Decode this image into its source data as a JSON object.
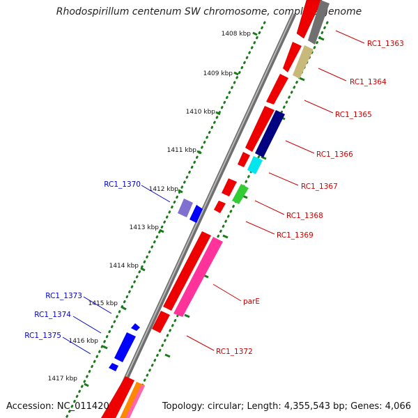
{
  "title": "Rhodospirillum centenum SW chromosome, complete genome",
  "footer": {
    "accession": "Accession: NC_011420",
    "topology": "Topology: circular; Length: 4,355,543 bp; Genes: 4,066"
  },
  "colors": {
    "backbone": "#8a8a8a",
    "ticks": "#1a7a1a",
    "forward_label": "#cc0000",
    "reverse_label": "#0000cc"
  },
  "kbp_labels": [
    "1408 kbp",
    "1409 kbp",
    "1410 kbp",
    "1411 kbp",
    "1412 kbp",
    "1413 kbp",
    "1414 kbp",
    "1415 kbp",
    "1416 kbp",
    "1417 kbp"
  ],
  "features": [
    {
      "label": "",
      "strand": "outer",
      "color": "#ee0000"
    },
    {
      "label": "RC1_1363",
      "strand": "outer",
      "color": "#707070"
    },
    {
      "label": "RC1_1364",
      "strand": "outer",
      "color": "#c8b87a"
    },
    {
      "label": "RC1_1365",
      "strand": "outer",
      "color": "#ee0000"
    },
    {
      "label": "RC1_1366",
      "strand": "outer",
      "color": "#000080"
    },
    {
      "label": "RC1_1367",
      "strand": "outer",
      "color": "#00e5ee"
    },
    {
      "label": "RC1_1368",
      "strand": "outer",
      "color": "#33cc33"
    },
    {
      "label": "RC1_1369",
      "strand": "outer",
      "color": "#ee0000"
    },
    {
      "label": "parE",
      "strand": "outer",
      "color": "#ff3399"
    },
    {
      "label": "RC1_1372",
      "strand": "outer",
      "color": "#ee0000"
    },
    {
      "label": "RC1_1370",
      "strand": "inner",
      "color": "#8070d0"
    },
    {
      "label": "RC1_1373",
      "strand": "inner",
      "color": "#0000ff"
    },
    {
      "label": "RC1_1374",
      "strand": "inner",
      "color": "#0000ff"
    },
    {
      "label": "RC1_1375",
      "strand": "inner",
      "color": "#0000ff"
    }
  ]
}
